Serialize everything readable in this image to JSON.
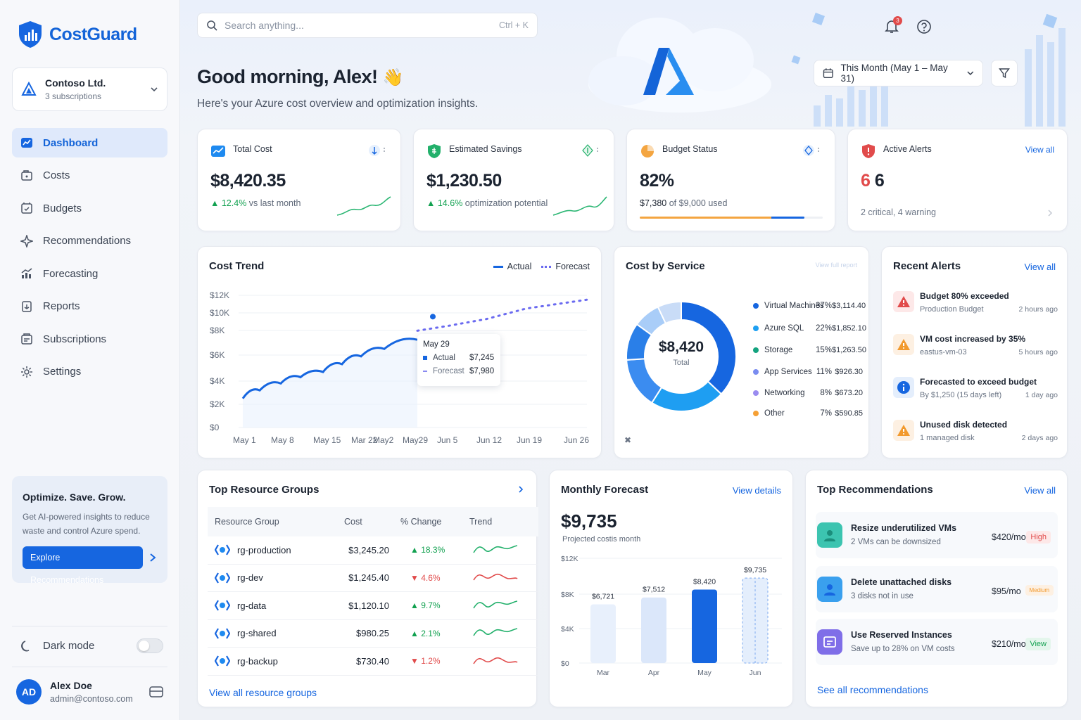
{
  "brand": {
    "name": "CostGuard",
    "accent": "#1666e0"
  },
  "org": {
    "name": "Contoso Ltd.",
    "subtitle": "3 subscriptions"
  },
  "nav": [
    {
      "label": "Dashboard",
      "icon": "dashboard-icon",
      "active": true
    },
    {
      "label": "Costs",
      "icon": "wallet-icon"
    },
    {
      "label": "Budgets",
      "icon": "budget-icon"
    },
    {
      "label": "Recommendations",
      "icon": "sparkle-icon"
    },
    {
      "label": "Forecasting",
      "icon": "forecast-icon"
    },
    {
      "label": "Reports",
      "icon": "report-icon"
    },
    {
      "label": "Subscriptions",
      "icon": "subscription-icon"
    },
    {
      "label": "Settings",
      "icon": "gear-icon"
    }
  ],
  "promo": {
    "title": "Optimize. Save. Grow.",
    "text": "Get AI-powered insights to reduce waste and control Azure spend.",
    "button": "Explore Recommendations"
  },
  "dark_mode": {
    "label": "Dark mode",
    "on": false
  },
  "user": {
    "initials": "AD",
    "name": "Alex Doe",
    "email": "admin@contoso.com"
  },
  "search": {
    "placeholder": "Search anything...",
    "shortcut": "Ctrl + K"
  },
  "notifications": {
    "count": "3"
  },
  "greeting": {
    "title": "Good morning, Alex!",
    "emoji": "👋",
    "subtitle": "Here's your Azure cost overview and optimization insights."
  },
  "date_range": "This Month (May 1 – May 31)",
  "kpis": {
    "total": {
      "label": "Total Cost",
      "value": "$8,420.35",
      "delta": "12.4%",
      "note": "vs last month"
    },
    "savings": {
      "label": "Estimated Savings",
      "value": "$1,230.50",
      "delta": "14.6%",
      "note": "optimization potential"
    },
    "budget": {
      "label": "Budget Status",
      "value": "82%",
      "used": "$7,380",
      "of": "of $9,000 used",
      "fraction": 0.82
    },
    "alerts": {
      "label": "Active Alerts",
      "link": "View all",
      "critical_count": "6",
      "count": "6",
      "detail": "2 critical, 4 warning"
    }
  },
  "cost_trend": {
    "title": "Cost Trend",
    "legend": [
      "Actual",
      "Forecast"
    ],
    "tooltip": {
      "date": "May 29",
      "actual_label": "Actual",
      "actual": "$7,245",
      "forecast_label": "Forecast",
      "forecast": "$7,980"
    }
  },
  "chart_data": {
    "type": "line",
    "y_ticks": [
      "$12K",
      "$10K",
      "$8K",
      "$6K",
      "$4K",
      "$2K",
      "$0"
    ],
    "x_ticks": [
      "May 1",
      "May 8",
      "May 15",
      "Mar 22",
      "May2",
      "May29",
      "Jun 5",
      "Jun 12",
      "Jun 19",
      "Jun 26"
    ],
    "ylim": [
      0,
      12000
    ],
    "series": [
      {
        "name": "Actual",
        "x": [
          "May 1",
          "May 4",
          "May 8",
          "May 11",
          "May 15",
          "May 18",
          "May 22",
          "May 25",
          "May 29"
        ],
        "values": [
          2500,
          3200,
          3800,
          4300,
          4700,
          5300,
          5900,
          6500,
          7245
        ]
      },
      {
        "name": "Forecast",
        "x": [
          "May 29",
          "Jun 5",
          "Jun 12",
          "Jun 19",
          "Jun 26"
        ],
        "values": [
          7980,
          8500,
          9300,
          10500,
          11500
        ]
      }
    ]
  },
  "cost_by_service": {
    "title": "Cost by Service",
    "link": "View full report",
    "center_value": "$8,420",
    "center_label": "Total",
    "items": [
      {
        "name": "Virtual Machines",
        "pct": "37%",
        "amount": "$3,114.40",
        "value": 37,
        "color": "#1666e0"
      },
      {
        "name": "Azure SQL",
        "pct": "22%",
        "amount": "$1,852.10",
        "value": 22,
        "color": "#1ea0f2"
      },
      {
        "name": "Storage",
        "pct": "15%",
        "amount": "$1,263.50",
        "value": 15,
        "color": "#14a37f"
      },
      {
        "name": "App Services",
        "pct": "11%",
        "amount": "$926.30",
        "value": 11,
        "color": "#7a8cf0"
      },
      {
        "name": "Networking",
        "pct": "8%",
        "amount": "$673.20",
        "value": 8,
        "color": "#9a8cf0"
      },
      {
        "name": "Other",
        "pct": "7%",
        "amount": "$590.85",
        "value": 7,
        "color": "#f5a035"
      }
    ],
    "ring_colors": [
      "#1666e0",
      "#1e9ef2",
      "#3b8cf0",
      "#2a7fe8",
      "#a9cdf8",
      "#c9dcf7"
    ]
  },
  "recent_alerts": {
    "title": "Recent Alerts",
    "link": "View all",
    "items": [
      {
        "title": "Budget 80% exceeded",
        "sub": "Production Budget",
        "time": "2 hours ago",
        "kind": "critical"
      },
      {
        "title": "VM cost increased by 35%",
        "sub": "eastus-vm-03",
        "time": "5 hours ago",
        "kind": "warning"
      },
      {
        "title": "Forecasted to exceed budget",
        "sub": "By $1,250 (15 days left)",
        "time": "1 day ago",
        "kind": "info"
      },
      {
        "title": "Unused disk detected",
        "sub": "1 managed disk",
        "time": "2 days ago",
        "kind": "warning"
      }
    ]
  },
  "resource_groups": {
    "title": "Top Resource Groups",
    "link": "View all resource groups",
    "headers": [
      "Resource Group",
      "Cost",
      "% Change",
      "Trend"
    ],
    "rows": [
      {
        "name": "rg-production",
        "cost": "$3,245.20",
        "change": "18.3%",
        "dir": "up"
      },
      {
        "name": "rg-dev",
        "cost": "$1,245.40",
        "change": "4.6%",
        "dir": "down"
      },
      {
        "name": "rg-data",
        "cost": "$1,120.10",
        "change": "9.7%",
        "dir": "up"
      },
      {
        "name": "rg-shared",
        "cost": "$980.25",
        "change": "2.1%",
        "dir": "up"
      },
      {
        "name": "rg-backup",
        "cost": "$730.40",
        "change": "1.2%",
        "dir": "down"
      }
    ]
  },
  "monthly_forecast": {
    "title": "Monthly Forecast",
    "link": "View details",
    "value": "$9,735",
    "subtitle": "Projected costis month",
    "y_ticks": [
      "$12K",
      "$8K",
      "$4K",
      "$0"
    ],
    "bars": [
      {
        "month": "Mar",
        "value": 6721,
        "label": "$6,721"
      },
      {
        "month": "Apr",
        "value": 7512,
        "label": "$7,512"
      },
      {
        "month": "May",
        "value": 8420,
        "label": "$8,420"
      },
      {
        "month": "Jun",
        "value": 9735,
        "label": "$9,735"
      }
    ]
  },
  "recommendations": {
    "title": "Top Recommendations",
    "link": "View all",
    "footer": "See all recommendations",
    "items": [
      {
        "title": "Resize underutilized VMs",
        "sub": "2 VMs can be downsized",
        "amount": "$420/mo",
        "tag": "High"
      },
      {
        "title": "Delete unattached disks",
        "sub": "3 disks not in use",
        "amount": "$95/mo",
        "tag": "Medium"
      },
      {
        "title": "Use Reserved Instances",
        "sub": "Save up to 28% on VM costs",
        "amount": "$210/mo",
        "tag": "View"
      }
    ]
  }
}
